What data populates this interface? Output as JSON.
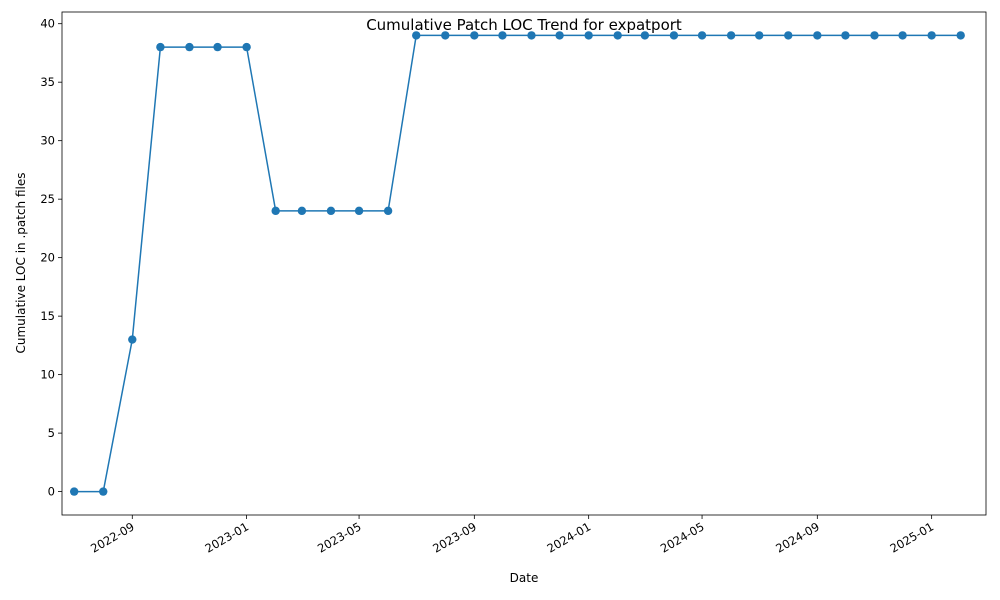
{
  "chart_data": {
    "type": "line",
    "title": "Cumulative Patch LOC Trend for expatport",
    "xlabel": "Date",
    "ylabel": "Cumulative LOC in .patch files",
    "grid": false,
    "legend": "none",
    "marker": "circle",
    "line_color": "#1f77b4",
    "x_ticks": [
      "2022-09",
      "2023-01",
      "2023-05",
      "2023-09",
      "2024-01",
      "2024-05",
      "2024-09",
      "2025-01"
    ],
    "y_ticks": [
      "0",
      "5",
      "10",
      "15",
      "20",
      "25",
      "30",
      "35",
      "40"
    ],
    "ylim": [
      -2,
      41
    ],
    "xlim": [
      "2022-06-18",
      "2025-02-28"
    ],
    "series": [
      {
        "x": [
          "2022-07-01",
          "2022-08-01",
          "2022-09-01",
          "2022-10-01",
          "2022-11-01",
          "2022-12-01",
          "2023-01-01",
          "2023-02-01",
          "2023-03-01",
          "2023-04-01",
          "2023-05-01",
          "2023-06-01",
          "2023-07-01",
          "2023-08-01",
          "2023-09-01",
          "2023-10-01",
          "2023-11-01",
          "2023-12-01",
          "2024-01-01",
          "2024-02-01",
          "2024-03-01",
          "2024-04-01",
          "2024-05-01",
          "2024-06-01",
          "2024-07-01",
          "2024-08-01",
          "2024-09-01",
          "2024-10-01",
          "2024-11-01",
          "2024-12-01",
          "2025-01-01",
          "2025-02-01"
        ],
        "y": [
          0,
          0,
          13,
          38,
          38,
          38,
          38,
          24,
          24,
          24,
          24,
          24,
          39,
          39,
          39,
          39,
          39,
          39,
          39,
          39,
          39,
          39,
          39,
          39,
          39,
          39,
          39,
          39,
          39,
          39,
          39,
          39
        ]
      }
    ]
  }
}
